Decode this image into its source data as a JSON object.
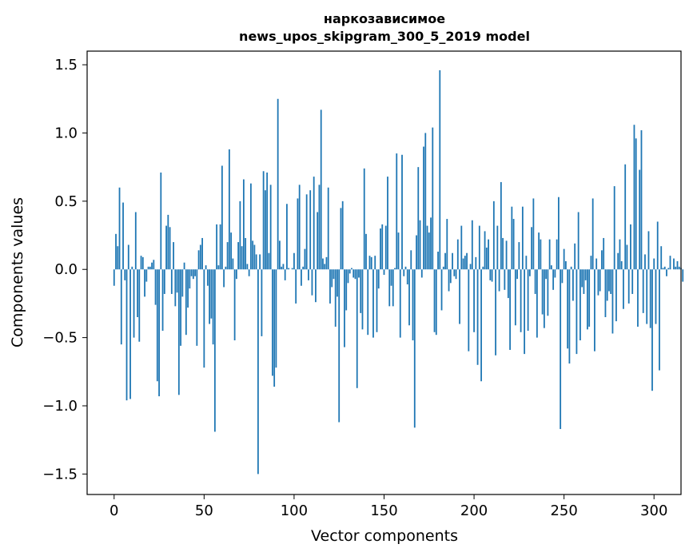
{
  "chart_data": {
    "type": "bar",
    "title": "наркозависимое",
    "subtitle": "news_upos_skipgram_300_5_2019 model",
    "xlabel": "Vector components",
    "ylabel": "Components values",
    "xlim": [
      -15,
      315
    ],
    "ylim": [
      -1.65,
      1.6
    ],
    "x_ticks": [
      0,
      50,
      100,
      150,
      200,
      250,
      300
    ],
    "y_ticks": [
      -1.5,
      -1.0,
      -0.5,
      0.0,
      0.5,
      1.0,
      1.5
    ],
    "x_tick_labels": [
      "0",
      "50",
      "100",
      "150",
      "200",
      "250",
      "300"
    ],
    "y_tick_labels": [
      "−1.5",
      "−1.0",
      "−0.5",
      "0.0",
      "0.5",
      "1.0",
      "1.5"
    ],
    "bar_color": "#1f77b4",
    "bar_width": 0.8,
    "values": [
      -0.12,
      0.26,
      0.17,
      0.6,
      -0.55,
      0.49,
      -0.08,
      -0.96,
      0.18,
      -0.95,
      0.02,
      -0.5,
      0.42,
      -0.35,
      -0.53,
      0.1,
      0.09,
      -0.2,
      -0.09,
      0.02,
      0.02,
      0.05,
      0.07,
      -0.26,
      -0.82,
      -0.93,
      0.71,
      -0.45,
      -0.18,
      0.32,
      0.4,
      0.31,
      -0.18,
      0.2,
      -0.27,
      -0.17,
      -0.92,
      -0.56,
      -0.2,
      0.05,
      -0.48,
      -0.28,
      -0.14,
      -0.05,
      -0.07,
      -0.05,
      -0.56,
      0.14,
      0.18,
      0.23,
      -0.72,
      0.03,
      -0.12,
      -0.4,
      -0.36,
      -0.55,
      -1.19,
      0.33,
      0.03,
      0.33,
      0.76,
      -0.13,
      0.02,
      0.2,
      0.88,
      0.27,
      0.08,
      -0.52,
      -0.07,
      0.2,
      0.5,
      0.17,
      0.66,
      0.23,
      0.04,
      -0.05,
      0.63,
      0.21,
      0.18,
      0.11,
      -1.5,
      0.11,
      -0.49,
      0.72,
      0.58,
      0.71,
      0.12,
      0.62,
      -0.78,
      -0.86,
      -0.72,
      1.25,
      0.21,
      0.02,
      0.04,
      -0.08,
      0.48,
      0.01,
      0.0,
      0.01,
      0.12,
      -0.25,
      0.52,
      0.62,
      -0.12,
      0.02,
      0.15,
      0.55,
      -0.08,
      0.58,
      -0.19,
      0.68,
      -0.24,
      0.42,
      0.62,
      1.17,
      0.08,
      0.04,
      0.09,
      0.6,
      -0.25,
      -0.13,
      -0.07,
      -0.42,
      -0.2,
      -1.12,
      0.45,
      0.5,
      -0.57,
      -0.3,
      -0.1,
      -0.03,
      0.01,
      -0.06,
      -0.07,
      -0.87,
      -0.06,
      -0.32,
      -0.44,
      0.74,
      0.26,
      -0.48,
      0.1,
      0.09,
      -0.5,
      0.1,
      -0.46,
      -0.14,
      0.3,
      0.33,
      -0.04,
      0.32,
      0.68,
      -0.27,
      -0.12,
      -0.27,
      0.01,
      0.85,
      0.27,
      -0.5,
      0.84,
      -0.05,
      0.02,
      -0.11,
      -0.41,
      0.14,
      -0.52,
      -1.16,
      0.25,
      0.75,
      0.36,
      -0.06,
      0.9,
      1.0,
      0.32,
      0.27,
      0.38,
      1.04,
      -0.46,
      -0.48,
      0.13,
      1.46,
      -0.3,
      0.02,
      0.12,
      0.37,
      -0.16,
      -0.1,
      0.12,
      -0.05,
      -0.07,
      0.22,
      -0.4,
      0.32,
      0.08,
      0.1,
      0.12,
      -0.6,
      0.04,
      0.36,
      -0.46,
      0.09,
      -0.7,
      0.32,
      -0.82,
      0.02,
      0.28,
      0.16,
      0.22,
      -0.08,
      -0.09,
      0.5,
      -0.63,
      0.32,
      -0.16,
      0.64,
      0.23,
      -0.15,
      0.21,
      -0.21,
      -0.59,
      0.46,
      0.37,
      -0.41,
      -0.07,
      0.2,
      -0.46,
      0.46,
      -0.62,
      0.1,
      -0.45,
      -0.05,
      0.31,
      0.52,
      -0.18,
      -0.5,
      0.27,
      0.22,
      -0.33,
      -0.43,
      -0.07,
      -0.34,
      0.22,
      0.03,
      -0.15,
      -0.06,
      0.22,
      0.53,
      -1.17,
      -0.1,
      0.15,
      0.06,
      -0.58,
      -0.69,
      0.02,
      -0.23,
      0.19,
      -0.62,
      0.42,
      -0.52,
      -0.13,
      -0.18,
      -0.08,
      -0.44,
      -0.42,
      0.1,
      0.52,
      -0.6,
      0.08,
      -0.19,
      -0.16,
      0.14,
      0.23,
      -0.35,
      -0.23,
      -0.16,
      -0.18,
      -0.47,
      0.61,
      -0.38,
      0.12,
      0.22,
      0.06,
      -0.29,
      0.77,
      0.18,
      -0.25,
      0.33,
      -0.18,
      1.06,
      0.96,
      -0.42,
      0.73,
      1.02,
      -0.32,
      0.11,
      -0.4,
      0.28,
      -0.43,
      -0.89,
      0.08,
      -0.4,
      0.35,
      -0.74,
      0.17,
      0.01,
      0.02,
      -0.05,
      0.01,
      0.1,
      0.0,
      0.08,
      0.02,
      0.06,
      0.02,
      0.01,
      -0.09
    ]
  }
}
